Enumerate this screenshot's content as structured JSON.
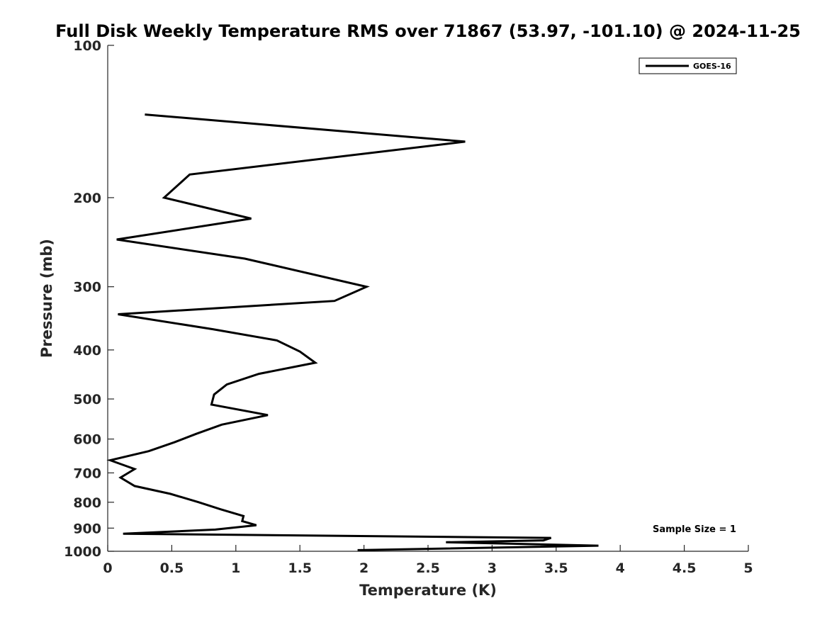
{
  "chart_data": {
    "type": "line",
    "title": "Full Disk Weekly Temperature RMS over 71867 (53.97, -101.10) @ 2024-11-25",
    "xlabel": "Temperature (K)",
    "ylabel": "Pressure (mb)",
    "xlim": [
      0,
      5
    ],
    "ylim": [
      100,
      1000
    ],
    "y_scale": "log",
    "y_reversed": true,
    "xticks": [
      0,
      0.5,
      1,
      1.5,
      2,
      2.5,
      3,
      3.5,
      4,
      4.5,
      5
    ],
    "xtick_labels": [
      "0",
      "0.5",
      "1",
      "1.5",
      "2",
      "2.5",
      "3",
      "3.5",
      "4",
      "4.5",
      "5"
    ],
    "yticks": [
      100,
      200,
      300,
      400,
      500,
      600,
      700,
      800,
      900,
      1000
    ],
    "ytick_labels": [
      "100",
      "200",
      "300",
      "400",
      "500",
      "600",
      "700",
      "800",
      "900",
      "1000"
    ],
    "grid": false,
    "legend": {
      "entries": [
        "GOES-16"
      ],
      "placement": "top-right"
    },
    "annotation": "Sample Size = 1",
    "series": [
      {
        "name": "GOES-16",
        "color": "#000000",
        "points": [
          {
            "x": 0.29,
            "y": 137
          },
          {
            "x": 2.79,
            "y": 155
          },
          {
            "x": 0.64,
            "y": 180
          },
          {
            "x": 0.44,
            "y": 200
          },
          {
            "x": 1.12,
            "y": 220
          },
          {
            "x": 0.07,
            "y": 242
          },
          {
            "x": 1.07,
            "y": 264
          },
          {
            "x": 2.02,
            "y": 300
          },
          {
            "x": 1.77,
            "y": 320
          },
          {
            "x": 0.08,
            "y": 340
          },
          {
            "x": 0.82,
            "y": 364
          },
          {
            "x": 1.32,
            "y": 383
          },
          {
            "x": 1.5,
            "y": 403
          },
          {
            "x": 1.62,
            "y": 424
          },
          {
            "x": 1.18,
            "y": 446
          },
          {
            "x": 0.93,
            "y": 468
          },
          {
            "x": 0.83,
            "y": 490
          },
          {
            "x": 0.81,
            "y": 513
          },
          {
            "x": 1.25,
            "y": 538
          },
          {
            "x": 0.89,
            "y": 562
          },
          {
            "x": 0.69,
            "y": 586
          },
          {
            "x": 0.52,
            "y": 609
          },
          {
            "x": 0.32,
            "y": 634
          },
          {
            "x": 0.02,
            "y": 661
          },
          {
            "x": 0.21,
            "y": 688
          },
          {
            "x": 0.1,
            "y": 715
          },
          {
            "x": 0.21,
            "y": 743
          },
          {
            "x": 0.49,
            "y": 770
          },
          {
            "x": 0.71,
            "y": 800
          },
          {
            "x": 0.88,
            "y": 826
          },
          {
            "x": 1.06,
            "y": 852
          },
          {
            "x": 1.05,
            "y": 872
          },
          {
            "x": 1.16,
            "y": 888
          },
          {
            "x": 0.84,
            "y": 906
          },
          {
            "x": 0.12,
            "y": 923
          },
          {
            "x": 3.46,
            "y": 941
          },
          {
            "x": 3.4,
            "y": 952
          },
          {
            "x": 2.64,
            "y": 960
          },
          {
            "x": 3.83,
            "y": 975
          },
          {
            "x": 1.95,
            "y": 995
          }
        ]
      }
    ]
  }
}
